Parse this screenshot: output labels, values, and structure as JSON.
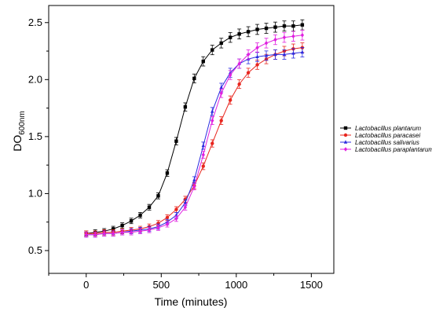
{
  "chart_data": {
    "type": "line",
    "xlabel": "Time (minutes)",
    "ylabel": {
      "main": "DO",
      "sub": "600nm"
    },
    "xlim": [
      -250,
      1650
    ],
    "ylim": [
      0.3,
      2.65
    ],
    "xticks": [
      0,
      500,
      1000,
      1500
    ],
    "yticks": [
      0.5,
      1.0,
      1.5,
      2.0,
      2.5
    ],
    "ytick_labels": [
      "0.5",
      "1.0",
      "1.5",
      "2.0",
      "2.5"
    ],
    "xtick_labels": [
      "0",
      "500",
      "1000",
      "1500"
    ],
    "legend_position": "right",
    "series": [
      {
        "name": "Lactobacillus plantarum",
        "color": "#000000",
        "marker": "square",
        "x": [
          0,
          60,
          120,
          180,
          240,
          300,
          360,
          420,
          480,
          540,
          600,
          660,
          720,
          780,
          840,
          900,
          960,
          1020,
          1080,
          1140,
          1200,
          1260,
          1320,
          1380,
          1440
        ],
        "y": [
          0.65,
          0.66,
          0.67,
          0.69,
          0.72,
          0.76,
          0.81,
          0.88,
          0.98,
          1.18,
          1.46,
          1.76,
          2.01,
          2.16,
          2.26,
          2.32,
          2.37,
          2.4,
          2.42,
          2.44,
          2.45,
          2.46,
          2.47,
          2.47,
          2.48
        ]
      },
      {
        "name": "Lactobacillus paracasei",
        "color": "#e8261e",
        "marker": "circle",
        "x": [
          0,
          60,
          120,
          180,
          240,
          300,
          360,
          420,
          480,
          540,
          600,
          660,
          720,
          780,
          840,
          900,
          960,
          1020,
          1080,
          1140,
          1200,
          1260,
          1320,
          1380,
          1440
        ],
        "y": [
          0.65,
          0.65,
          0.66,
          0.66,
          0.67,
          0.68,
          0.69,
          0.71,
          0.74,
          0.79,
          0.86,
          0.95,
          1.07,
          1.24,
          1.44,
          1.64,
          1.82,
          1.96,
          2.06,
          2.13,
          2.18,
          2.22,
          2.25,
          2.27,
          2.28
        ]
      },
      {
        "name": "Lactobacillus salivarius",
        "color": "#2b2be0",
        "marker": "triangle",
        "x": [
          0,
          60,
          120,
          180,
          240,
          300,
          360,
          420,
          480,
          540,
          600,
          660,
          720,
          780,
          840,
          900,
          960,
          1020,
          1080,
          1140,
          1200,
          1260,
          1320,
          1380,
          1440
        ],
        "y": [
          0.64,
          0.64,
          0.65,
          0.65,
          0.66,
          0.67,
          0.68,
          0.69,
          0.71,
          0.75,
          0.81,
          0.92,
          1.12,
          1.42,
          1.72,
          1.93,
          2.06,
          2.14,
          2.18,
          2.2,
          2.21,
          2.22,
          2.22,
          2.23,
          2.24
        ]
      },
      {
        "name": "Lactobacillus paraplantarum",
        "color": "#e020e0",
        "marker": "diamond",
        "x": [
          0,
          60,
          120,
          180,
          240,
          300,
          360,
          420,
          480,
          540,
          600,
          660,
          720,
          780,
          840,
          900,
          960,
          1020,
          1080,
          1140,
          1200,
          1260,
          1320,
          1380,
          1440
        ],
        "y": [
          0.64,
          0.64,
          0.65,
          0.65,
          0.66,
          0.66,
          0.67,
          0.68,
          0.7,
          0.73,
          0.78,
          0.88,
          1.06,
          1.34,
          1.64,
          1.88,
          2.04,
          2.14,
          2.22,
          2.28,
          2.32,
          2.35,
          2.37,
          2.38,
          2.39
        ]
      }
    ]
  }
}
